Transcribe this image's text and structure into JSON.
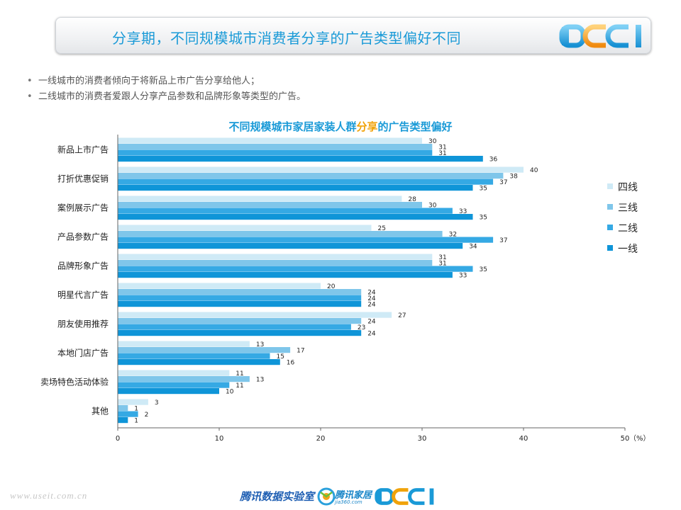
{
  "header": {
    "title": "分享期，不同规模城市消费者分享的广告类型偏好不同",
    "logo_text": "DCCI"
  },
  "bullets": [
    "一线城市的消费者倾向于将新品上市广告分享给他人；",
    "二线城市的消费者爱跟人分享产品参数和品牌形象等类型的广告。"
  ],
  "chart_title": {
    "pre": "不同规模城市家居家装人群",
    "highlight": "分享",
    "post": "的广告类型偏好"
  },
  "chart_data": {
    "type": "bar",
    "orientation": "horizontal",
    "title": "不同规模城市家居家装人群分享的广告类型偏好",
    "categories": [
      "新品上市广告",
      "打折优惠促销",
      "案例展示广告",
      "产品参数广告",
      "品牌形象广告",
      "明星代言广告",
      "朋友使用推荐",
      "本地门店广告",
      "卖场特色活动体验",
      "其他"
    ],
    "series": [
      {
        "name": "四线",
        "color": "#cfeaf6",
        "values": [
          30,
          40,
          28,
          25,
          31,
          20,
          27,
          13,
          11,
          3
        ]
      },
      {
        "name": "三线",
        "color": "#7fc6ea",
        "values": [
          31,
          38,
          30,
          32,
          31,
          24,
          24,
          17,
          13,
          1
        ]
      },
      {
        "name": "二线",
        "color": "#35a9e4",
        "values": [
          31,
          37,
          33,
          37,
          35,
          24,
          23,
          15,
          11,
          2
        ]
      },
      {
        "name": "一线",
        "color": "#0f95d8",
        "values": [
          36,
          35,
          35,
          34,
          33,
          24,
          24,
          16,
          10,
          1
        ]
      }
    ],
    "xlim": [
      0,
      50
    ],
    "xticks": [
      0,
      10,
      20,
      30,
      40,
      50
    ],
    "unit_label": "（%）",
    "legend_order": [
      "四线",
      "三线",
      "二线",
      "一线"
    ],
    "legend_position": "right",
    "grid": false
  },
  "footer": {
    "site": "www.useit.com.cn",
    "lab": "腾讯数据实验室",
    "jiaju": "腾讯家居",
    "jiaju_sub": "jia360.com",
    "logo": "DCCI"
  },
  "icons": {
    "logo": "dcci-logo",
    "jiaju": "tencent-jiaju-logo"
  }
}
